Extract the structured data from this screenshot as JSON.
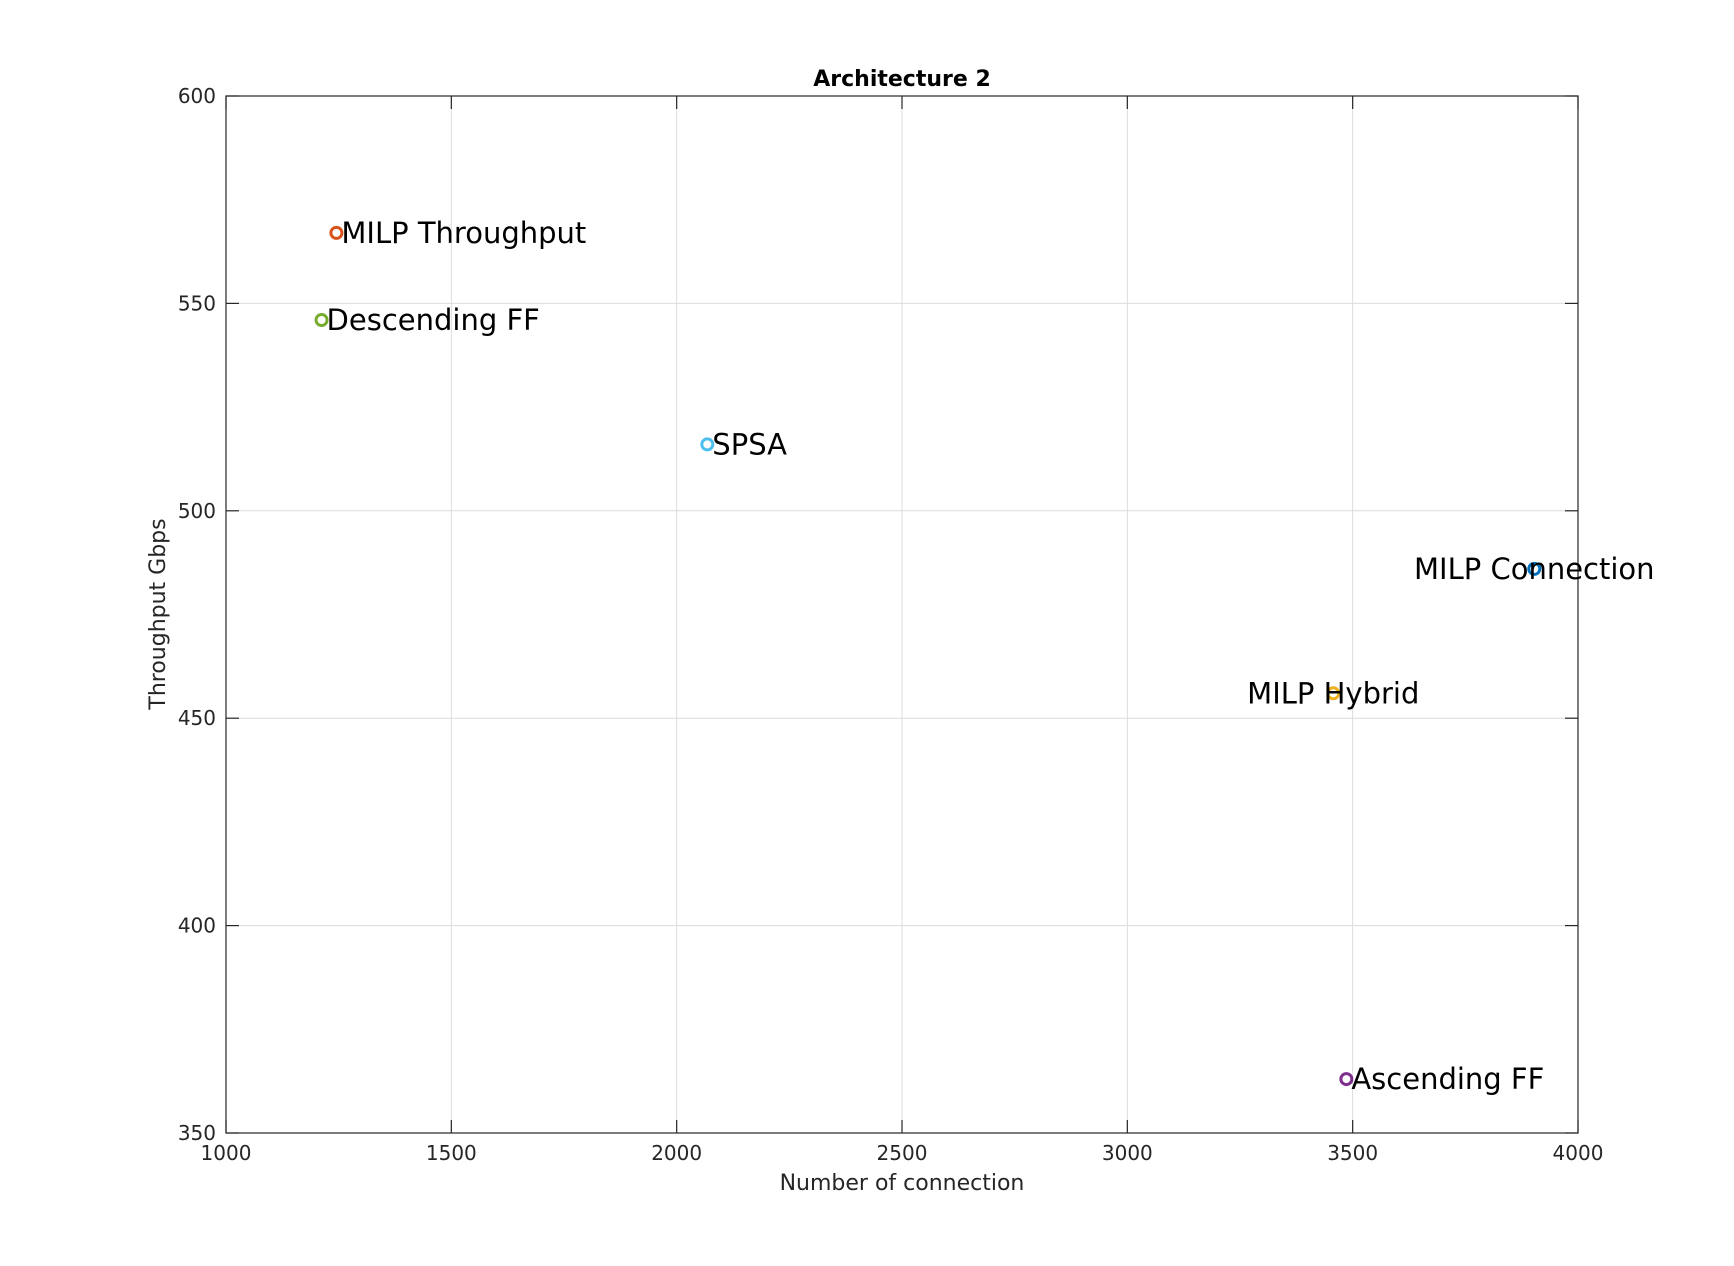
{
  "chart_data": {
    "type": "scatter",
    "title": "Architecture 2",
    "xlabel": "Number of connection",
    "ylabel": "Throughput Gbps",
    "xlim": [
      1000,
      4000
    ],
    "ylim": [
      350,
      600
    ],
    "xticks": [
      1000,
      1500,
      2000,
      2500,
      3000,
      3500,
      4000
    ],
    "yticks": [
      350,
      400,
      450,
      500,
      550,
      600
    ],
    "grid": true,
    "points": [
      {
        "label": "MILP Throughput",
        "x": 1245,
        "y": 567,
        "color": "#D95319",
        "label_side": "right"
      },
      {
        "label": "Descending FF",
        "x": 1212,
        "y": 546,
        "color": "#77AC30",
        "label_side": "right"
      },
      {
        "label": "SPSA",
        "x": 2068,
        "y": 516,
        "color": "#4DBEEE",
        "label_side": "right"
      },
      {
        "label": "MILP Connection",
        "x": 3903,
        "y": 486,
        "color": "#0072BD",
        "label_side": "center"
      },
      {
        "label": "MILP Hybrid",
        "x": 3457,
        "y": 456,
        "color": "#EDB120",
        "label_side": "center"
      },
      {
        "label": "Ascending FF",
        "x": 3486,
        "y": 363,
        "color": "#7E2F8E",
        "label_side": "right"
      }
    ]
  }
}
